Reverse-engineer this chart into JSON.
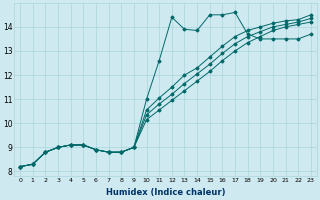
{
  "xlabel": "Humidex (Indice chaleur)",
  "ylabel": "",
  "bg_color": "#ceeaf0",
  "grid_color": "#aad4dc",
  "line_color": "#006868",
  "xlim": [
    -0.5,
    23.5
  ],
  "ylim": [
    7.8,
    15.0
  ],
  "xticks": [
    0,
    1,
    2,
    3,
    4,
    5,
    6,
    7,
    8,
    9,
    10,
    11,
    12,
    13,
    14,
    15,
    16,
    17,
    18,
    19,
    20,
    21,
    22,
    23
  ],
  "yticks": [
    8,
    9,
    10,
    11,
    12,
    13,
    14
  ],
  "series": [
    [
      8.2,
      8.3,
      8.8,
      9.0,
      9.1,
      9.1,
      8.9,
      8.8,
      8.8,
      9.0,
      11.0,
      12.6,
      14.4,
      13.9,
      13.85,
      14.5,
      14.5,
      14.6,
      13.7,
      13.5,
      13.5,
      13.5,
      13.5,
      13.7
    ],
    [
      8.2,
      8.3,
      8.8,
      9.0,
      9.1,
      9.1,
      8.9,
      8.8,
      8.8,
      9.0,
      10.55,
      11.05,
      11.5,
      12.0,
      12.3,
      12.75,
      13.2,
      13.6,
      13.85,
      14.0,
      14.15,
      14.25,
      14.3,
      14.5
    ],
    [
      8.2,
      8.3,
      8.8,
      9.0,
      9.1,
      9.1,
      8.9,
      8.8,
      8.8,
      9.0,
      10.35,
      10.8,
      11.2,
      11.65,
      12.05,
      12.45,
      12.9,
      13.3,
      13.6,
      13.8,
      14.0,
      14.1,
      14.2,
      14.35
    ],
    [
      8.2,
      8.3,
      8.8,
      9.0,
      9.1,
      9.1,
      8.9,
      8.8,
      8.8,
      9.0,
      10.15,
      10.55,
      10.95,
      11.35,
      11.75,
      12.15,
      12.6,
      13.0,
      13.35,
      13.6,
      13.85,
      14.0,
      14.1,
      14.2
    ]
  ]
}
